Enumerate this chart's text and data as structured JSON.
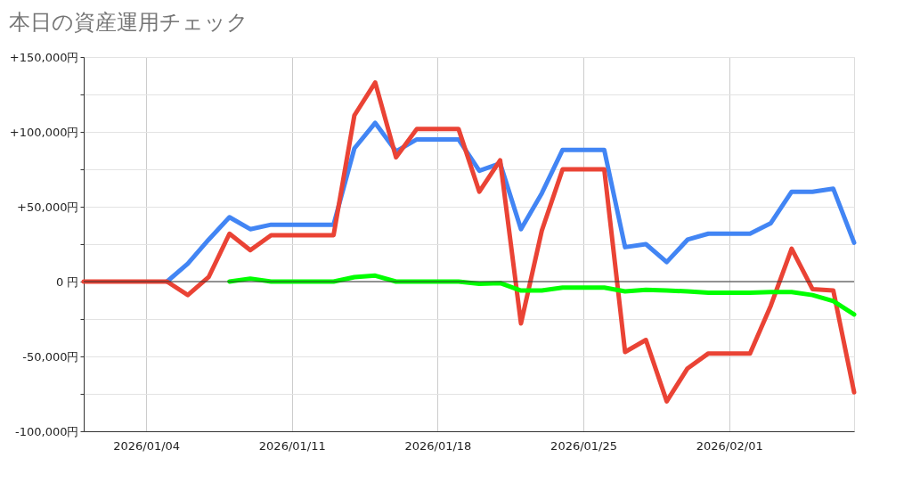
{
  "chart_data": {
    "type": "line",
    "title": "本日の資産運用チェック",
    "x": [
      "2026-01-01",
      "2026-01-02",
      "2026-01-03",
      "2026-01-04",
      "2026-01-05",
      "2026-01-06",
      "2026-01-07",
      "2026-01-08",
      "2026-01-09",
      "2026-01-10",
      "2026-01-11",
      "2026-01-12",
      "2026-01-13",
      "2026-01-14",
      "2026-01-15",
      "2026-01-16",
      "2026-01-17",
      "2026-01-18",
      "2026-01-19",
      "2026-01-20",
      "2026-01-21",
      "2026-01-22",
      "2026-01-23",
      "2026-01-24",
      "2026-01-25",
      "2026-01-26",
      "2026-01-27",
      "2026-01-28",
      "2026-01-29",
      "2026-01-30",
      "2026-01-31",
      "2026-02-01",
      "2026-02-02",
      "2026-02-03",
      "2026-02-04",
      "2026-02-05",
      "2026-02-06",
      "2026-02-07"
    ],
    "series": [
      {
        "color": "#4285f4",
        "values": [
          null,
          null,
          null,
          null,
          0,
          12000,
          28000,
          43000,
          35000,
          38000,
          38000,
          38000,
          38000,
          89000,
          106000,
          87000,
          95000,
          95000,
          95000,
          74000,
          79000,
          35000,
          59000,
          88000,
          88000,
          88000,
          23000,
          25000,
          13000,
          28000,
          32000,
          32000,
          32000,
          39000,
          60000,
          60000,
          62000,
          26000
        ]
      },
      {
        "color": "#ea4335",
        "values": [
          0,
          0,
          0,
          0,
          0,
          -9000,
          3000,
          32000,
          21000,
          31000,
          31000,
          31000,
          31000,
          111000,
          133000,
          83000,
          102000,
          102000,
          102000,
          60000,
          81000,
          -28000,
          34000,
          75000,
          75000,
          75000,
          -47000,
          -39000,
          -80000,
          -58000,
          -48000,
          -48000,
          -48000,
          -16000,
          22000,
          -5000,
          -6000,
          -74000
        ]
      },
      {
        "color": "#00ff00",
        "values": [
          null,
          null,
          null,
          null,
          null,
          null,
          null,
          0,
          2000,
          0,
          0,
          0,
          0,
          3000,
          4000,
          0,
          0,
          0,
          0,
          -1500,
          -1000,
          -6000,
          -6000,
          -4000,
          -4000,
          -4000,
          -6500,
          -5500,
          -6000,
          -6500,
          -7500,
          -7500,
          -7500,
          -7000,
          -7000,
          -9000,
          -13000,
          -22000
        ]
      }
    ],
    "xlim": [
      "2026-01-01",
      "2026-02-07"
    ],
    "xticks": [
      {
        "value": "2026-01-04",
        "label": "2026/01/04"
      },
      {
        "value": "2026-01-11",
        "label": "2026/01/11"
      },
      {
        "value": "2026-01-18",
        "label": "2026/01/18"
      },
      {
        "value": "2026-01-25",
        "label": "2026/01/25"
      },
      {
        "value": "2026-02-01",
        "label": "2026/02/01"
      }
    ],
    "ylim": [
      -100000,
      150000
    ],
    "yticks": [
      {
        "value": -100000,
        "label": "-100,000円"
      },
      {
        "value": -75000,
        "label": null
      },
      {
        "value": -50000,
        "label": "-50,000円"
      },
      {
        "value": -25000,
        "label": null
      },
      {
        "value": 0,
        "label": "0 円"
      },
      {
        "value": 25000,
        "label": null
      },
      {
        "value": 50000,
        "label": "+50,000円"
      },
      {
        "value": 75000,
        "label": null
      },
      {
        "value": 100000,
        "label": "+100,000円"
      },
      {
        "value": 125000,
        "label": null
      },
      {
        "value": 150000,
        "label": "+150,000円"
      }
    ],
    "ref_lines": [
      {
        "axis": "y",
        "value": 0,
        "color": "#333333"
      }
    ],
    "grid": true,
    "marker": "none",
    "line_style": "solid"
  }
}
